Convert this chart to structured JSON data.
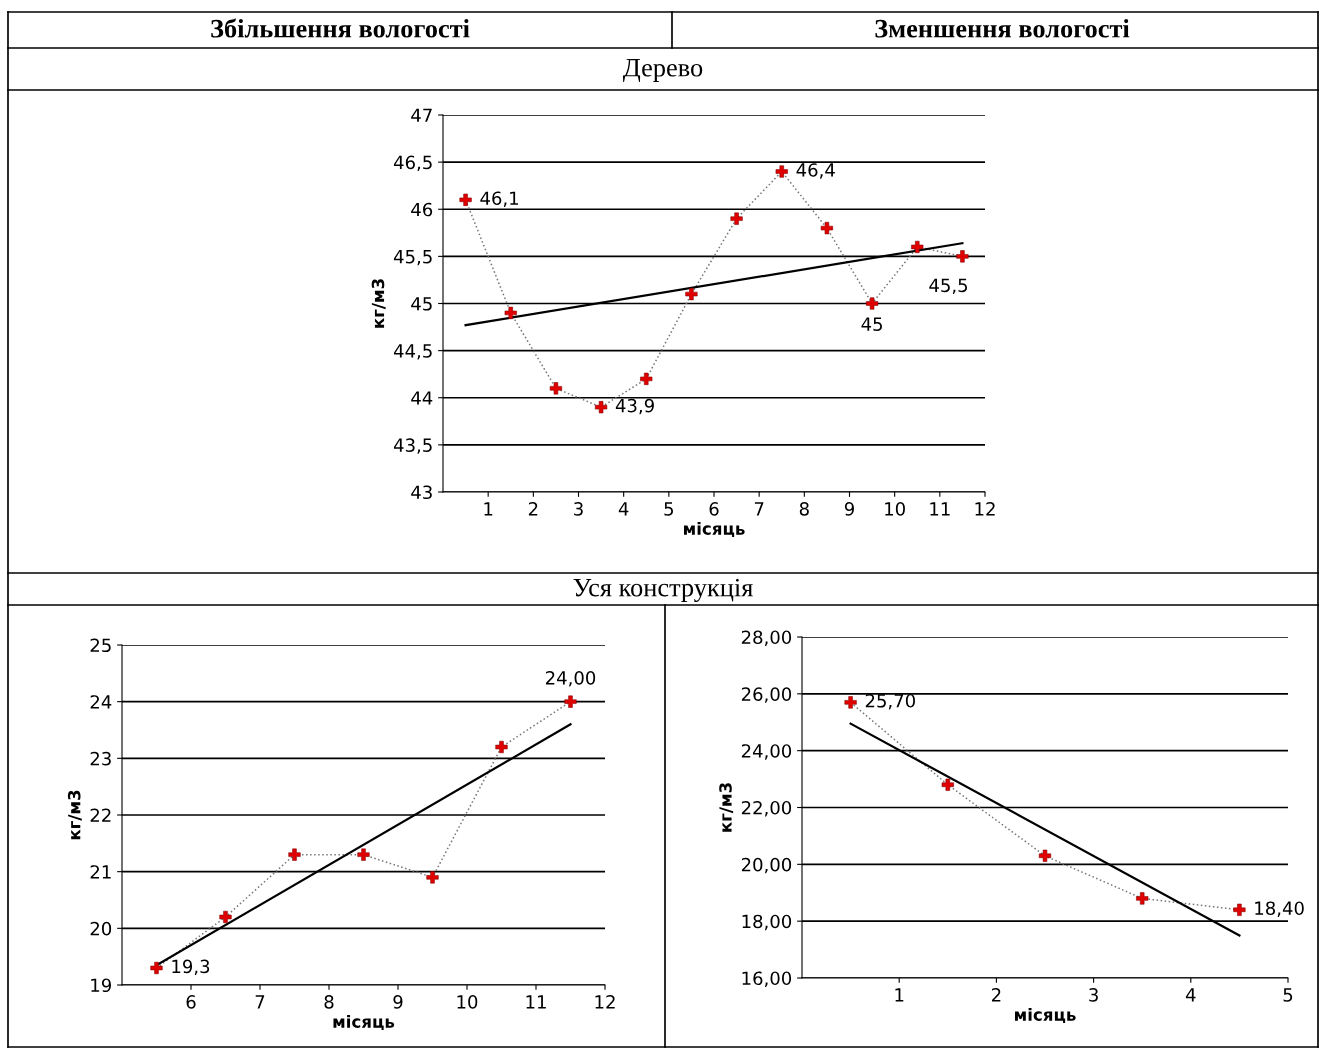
{
  "chart_data": [
    {
      "type": "line",
      "title": "Дерево",
      "annotations": [
        "Збільшення вологості",
        "Зменшення вологості"
      ],
      "xlabel": "місяць",
      "ylabel": "кг/м3",
      "xlim": [
        0,
        12
      ],
      "xticks": [
        1,
        2,
        3,
        4,
        5,
        6,
        7,
        8,
        9,
        10,
        11,
        12
      ],
      "ylim": [
        43,
        47
      ],
      "yticks": [
        43,
        {
          "value": 43.5,
          "label": "43,5"
        },
        44,
        {
          "value": 44.5,
          "label": "44,5"
        },
        45,
        {
          "value": 45.5,
          "label": "45,5"
        },
        46,
        {
          "value": 46.5,
          "label": "46,5"
        },
        47
      ],
      "grid": "y",
      "series": [
        {
          "marker": "cross",
          "line_style": "dotted",
          "x": [
            0.5,
            1.5,
            2.5,
            3.5,
            4.5,
            5.5,
            6.5,
            7.5,
            8.5,
            9.5,
            10.5,
            11.5
          ],
          "values": [
            46.1,
            44.9,
            44.1,
            43.9,
            44.2,
            45.1,
            45.9,
            46.4,
            45.8,
            45.0,
            45.6,
            45.5
          ],
          "color": "#777777",
          "colors": [
            "#e00000",
            "#e00000",
            "#e00000",
            "#e00000",
            "#e00000",
            "#e00000",
            "#e00000",
            "#e00000",
            "#e00000",
            "#e00000",
            "#e00000",
            "#e00000"
          ],
          "value_labels": [
            "46,1",
            null,
            null,
            "43,9",
            null,
            null,
            null,
            "46,4",
            null,
            "45",
            null,
            "45,5"
          ]
        },
        {
          "marker": "none",
          "line_style": "solid",
          "x": [
            0.5,
            11.5
          ],
          "values": [
            44.77,
            45.64
          ],
          "color": "#000000"
        }
      ]
    },
    {
      "type": "line",
      "title": "Уся конструкція",
      "xlabel": "місяць",
      "ylabel": "кг/м3",
      "xlim": [
        5,
        12
      ],
      "xticks": [
        6,
        7,
        8,
        9,
        10,
        11,
        12
      ],
      "ylim": [
        19,
        25
      ],
      "yticks": [
        19,
        20,
        21,
        22,
        23,
        24,
        25
      ],
      "grid": "y",
      "series": [
        {
          "marker": "cross",
          "line_style": "dotted",
          "x": [
            5.5,
            6.5,
            7.5,
            8.5,
            9.5,
            10.5,
            11.5
          ],
          "values": [
            19.3,
            20.2,
            21.3,
            21.3,
            20.9,
            23.2,
            24.0
          ],
          "color": "#777777",
          "colors": [
            "#e00000",
            "#e00000",
            "#e00000",
            "#e00000",
            "#e00000",
            "#e00000",
            "#e00000"
          ],
          "value_labels": [
            "19,3",
            null,
            null,
            null,
            null,
            null,
            "24,00"
          ]
        },
        {
          "marker": "none",
          "line_style": "solid",
          "x": [
            5.5,
            11.5
          ],
          "values": [
            19.35,
            23.6
          ],
          "color": "#000000"
        }
      ]
    },
    {
      "type": "line",
      "xlabel": "місяць",
      "ylabel": "кг/м3",
      "xlim": [
        0,
        5
      ],
      "xticks": [
        1,
        2,
        3,
        4,
        5
      ],
      "ylim": [
        16,
        28
      ],
      "yticks": [
        {
          "value": 16,
          "label": "16,00"
        },
        {
          "value": 18,
          "label": "18,00"
        },
        {
          "value": 20,
          "label": "20,00"
        },
        {
          "value": 22,
          "label": "22,00"
        },
        {
          "value": 24,
          "label": "24,00"
        },
        {
          "value": 26,
          "label": "26,00"
        },
        {
          "value": 28,
          "label": "28,00"
        }
      ],
      "grid": "y",
      "series": [
        {
          "marker": "cross",
          "line_style": "dotted",
          "x": [
            0.5,
            1.5,
            2.5,
            3.5,
            4.5
          ],
          "values": [
            25.7,
            22.8,
            20.3,
            18.8,
            18.4
          ],
          "color": "#777777",
          "colors": [
            "#e00000",
            "#e00000",
            "#e00000",
            "#e00000",
            "#e00000"
          ],
          "value_labels": [
            "25,70",
            null,
            null,
            null,
            "18,40"
          ]
        },
        {
          "marker": "none",
          "line_style": "solid",
          "x": [
            0.5,
            4.5
          ],
          "values": [
            24.95,
            17.5
          ],
          "color": "#000000"
        }
      ]
    }
  ]
}
